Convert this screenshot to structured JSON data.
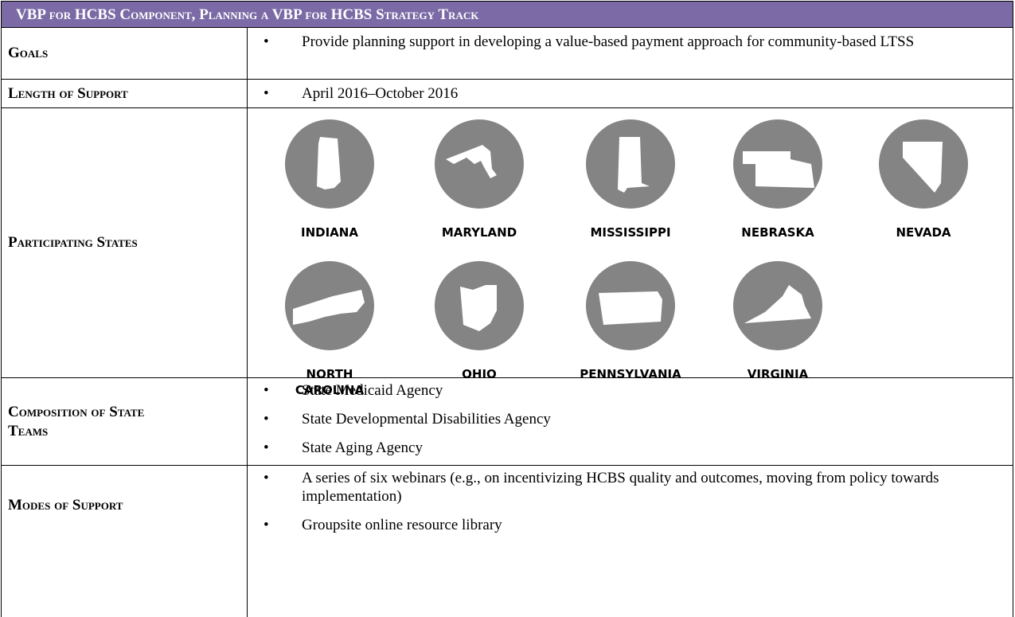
{
  "header": {
    "title": "VBP for HCBS Component, Planning a VBP for HCBS Strategy Track"
  },
  "rows": [
    {
      "label": "Goals",
      "items": [
        "Provide planning support in developing a value-based payment approach for community-based LTSS"
      ]
    },
    {
      "label": "Length of Support",
      "items": [
        "April 2016–October 2016"
      ]
    },
    {
      "label": "Participating States",
      "states": [
        "INDIANA",
        "MARYLAND",
        "MISSISSIPPI",
        "NEBRASKA",
        "NEVADA",
        "NORTH CAROLINA",
        "OHIO",
        "PENNSYLVANIA",
        "VIRGINIA"
      ]
    },
    {
      "label": "Composition of State Teams",
      "items": [
        "State Medicaid Agency",
        "State Developmental Disabilities Agency",
        "State Aging Agency"
      ]
    },
    {
      "label": "Modes of Support",
      "items": [
        "A series of six webinars (e.g., on incentivizing HCBS quality and outcomes, moving from policy towards implementation)",
        "Groupsite online resource library"
      ]
    }
  ]
}
